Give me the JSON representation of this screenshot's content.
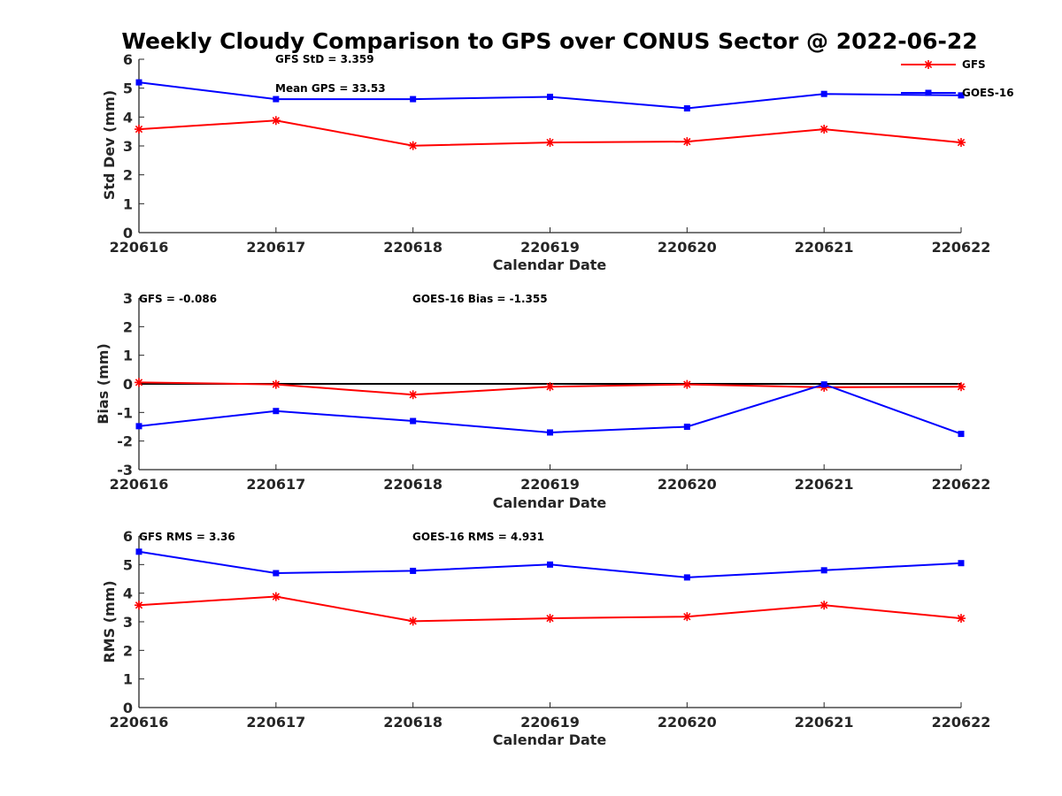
{
  "title": "Weekly Cloudy Comparison to GPS over CONUS Sector @ 2022-06-22",
  "legend": {
    "placement": "top-right",
    "entries": [
      {
        "label": "GFS",
        "color": "#ff0000",
        "marker": "asterisk"
      },
      {
        "label": "GOES-16",
        "color": "#0000ff",
        "marker": "square"
      }
    ]
  },
  "panels": [
    {
      "annotations": [
        "GFS StD = 3.359",
        "Mean GPS = 33.53"
      ]
    },
    {
      "annotations": [
        "GFS = -0.086",
        "GOES-16 Bias  = -1.355"
      ]
    },
    {
      "annotations": [
        "GFS RMS = 3.36",
        "GOES-16 RMS = 4.931"
      ]
    }
  ],
  "chart_data": [
    {
      "type": "line",
      "categories": [
        "220616",
        "220617",
        "220618",
        "220619",
        "220620",
        "220621",
        "220622"
      ],
      "xlabel": "Calendar Date",
      "ylabel": "Std Dev (mm)",
      "ylim": [
        0,
        6
      ],
      "yticks": [
        "0",
        "1",
        "2",
        "3",
        "4",
        "5",
        "6"
      ],
      "series": [
        {
          "name": "GFS",
          "color": "#ff0000",
          "marker": "asterisk",
          "values": [
            3.58,
            3.88,
            3.01,
            3.12,
            3.15,
            3.58,
            3.12
          ]
        },
        {
          "name": "GOES-16",
          "color": "#0000ff",
          "marker": "square",
          "values": [
            5.2,
            4.62,
            4.62,
            4.7,
            4.3,
            4.8,
            4.75
          ]
        }
      ]
    },
    {
      "type": "line",
      "categories": [
        "220616",
        "220617",
        "220618",
        "220619",
        "220620",
        "220621",
        "220622"
      ],
      "xlabel": "Calendar Date",
      "ylabel": "Bias (mm)",
      "ylim": [
        -3,
        3
      ],
      "yticks": [
        "-3",
        "-2",
        "-1",
        "0",
        "1",
        "2",
        "3"
      ],
      "zero_line": true,
      "series": [
        {
          "name": "GFS",
          "color": "#ff0000",
          "marker": "asterisk",
          "values": [
            0.05,
            -0.02,
            -0.38,
            -0.1,
            -0.02,
            -0.12,
            -0.1
          ]
        },
        {
          "name": "GOES-16",
          "color": "#0000ff",
          "marker": "square",
          "values": [
            -1.48,
            -0.95,
            -1.3,
            -1.7,
            -1.5,
            -0.02,
            -1.75
          ]
        }
      ]
    },
    {
      "type": "line",
      "categories": [
        "220616",
        "220617",
        "220618",
        "220619",
        "220620",
        "220621",
        "220622"
      ],
      "xlabel": "Calendar Date",
      "ylabel": "RMS (mm)",
      "ylim": [
        0,
        6
      ],
      "yticks": [
        "0",
        "1",
        "2",
        "3",
        "4",
        "5",
        "6"
      ],
      "series": [
        {
          "name": "GFS",
          "color": "#ff0000",
          "marker": "asterisk",
          "values": [
            3.58,
            3.88,
            3.02,
            3.12,
            3.18,
            3.58,
            3.12
          ]
        },
        {
          "name": "GOES-16",
          "color": "#0000ff",
          "marker": "square",
          "values": [
            5.45,
            4.7,
            4.78,
            5.0,
            4.55,
            4.8,
            5.05
          ]
        }
      ]
    }
  ]
}
